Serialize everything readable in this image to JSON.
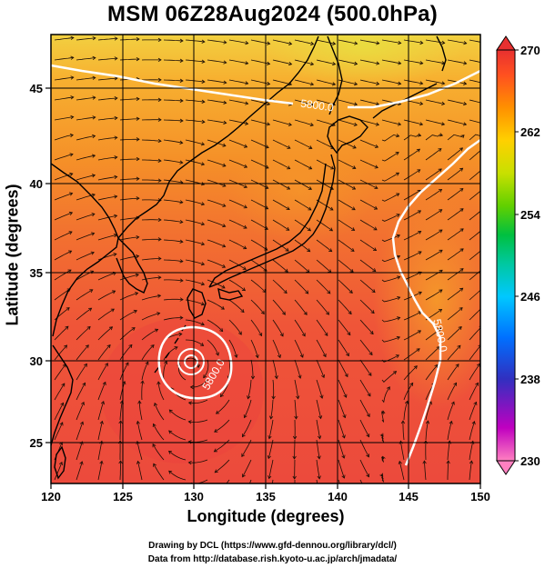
{
  "title": "MSM 06Z28Aug2024 (500.0hPa)",
  "x_axis": {
    "label": "Longitude (degrees)",
    "ticks": [
      "120",
      "125",
      "130",
      "135",
      "140",
      "145",
      "150"
    ]
  },
  "y_axis": {
    "label": "Latitude (degrees)",
    "ticks": [
      "45",
      "40",
      "35",
      "30",
      "25"
    ]
  },
  "colorbar": {
    "ticks": [
      "270",
      "262",
      "254",
      "246",
      "238",
      "230"
    ],
    "colors": [
      "#ff80c0",
      "#c000c0",
      "#3030c0",
      "#0070ff",
      "#00c8ff",
      "#00c8a0",
      "#00c040",
      "#60d000",
      "#c8e000",
      "#ffd000",
      "#ff9000",
      "#ff5020",
      "#e83030"
    ]
  },
  "contours": {
    "label_north": "5800.0",
    "label_east": "5800.0",
    "label_low": "5800.0"
  },
  "credits": {
    "line1": "Drawing by DCL (https://www.gfd-dennou.org/library/dcl/)",
    "line2": "Data from http://database.rish.kyoto-u.ac.jp/arch/jmadata/"
  }
}
